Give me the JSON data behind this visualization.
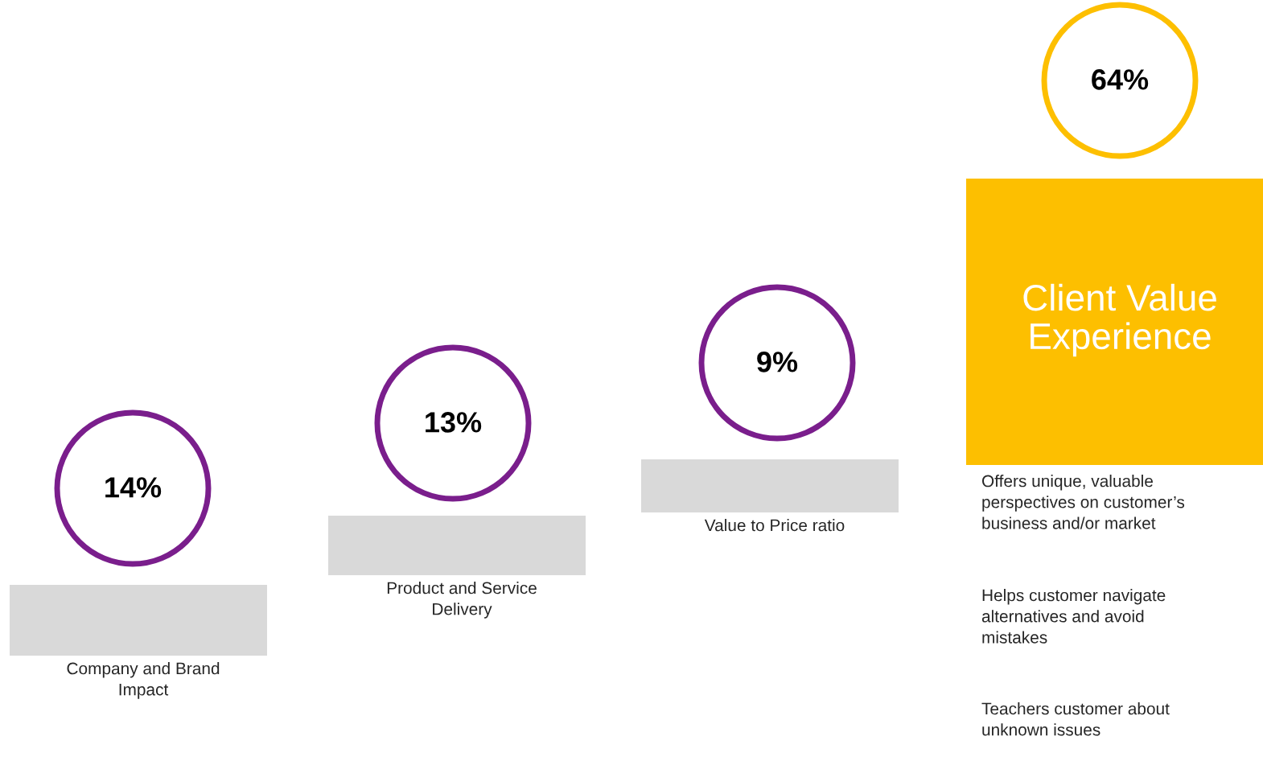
{
  "chart_data": {
    "type": "other",
    "categories": [
      "Company and Brand\nImpact",
      "Product and Service\nDelivery",
      "Value to Price ratio",
      "Client Value\nExperience"
    ],
    "values": [
      14,
      13,
      9,
      64
    ],
    "value_labels": [
      "14%",
      "13%",
      "9%",
      "64%"
    ],
    "colors": [
      "#7a1e8c",
      "#7a1e8c",
      "#7a1e8c",
      "#fdbf00"
    ],
    "annotations": [
      "Offers unique, valuable\nperspectives on customer’s\nbusiness and/or market",
      "Helps customer navigate\nalternatives and avoid\nmistakes",
      "Teachers customer about\nunknown issues"
    ]
  }
}
